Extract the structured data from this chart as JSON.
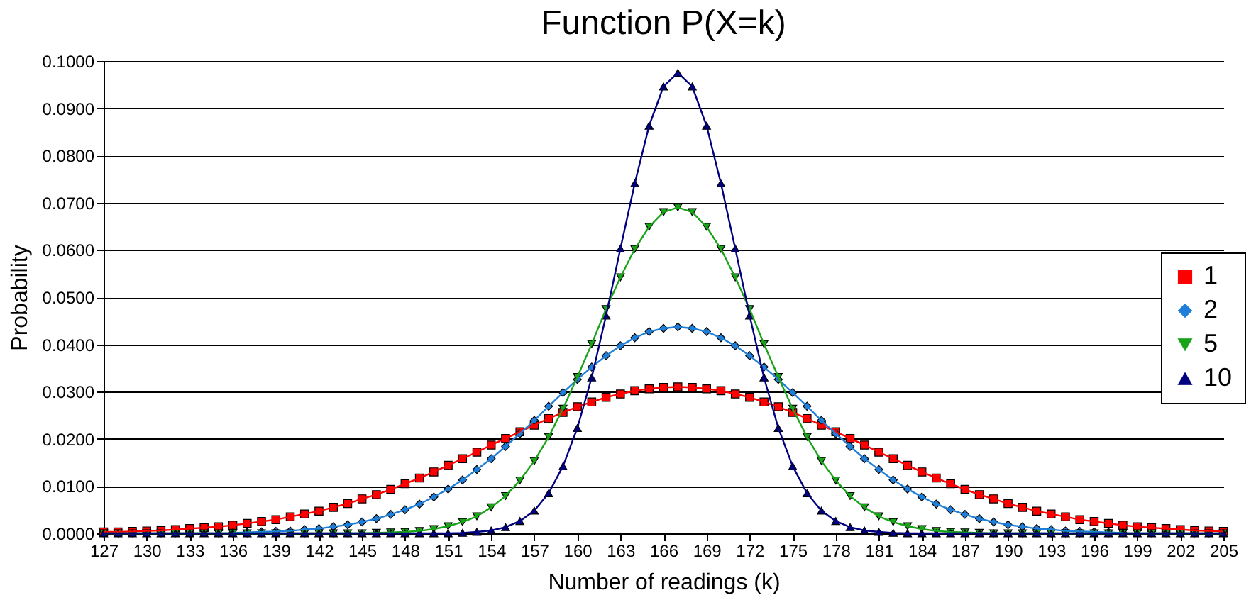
{
  "chart_data": {
    "type": "line",
    "title": "Function P(X=k)",
    "xlabel": "Number of readings (k)",
    "ylabel": "Probability",
    "x": [
      127,
      128,
      129,
      130,
      131,
      132,
      133,
      134,
      135,
      136,
      137,
      138,
      139,
      140,
      141,
      142,
      143,
      144,
      145,
      146,
      147,
      148,
      149,
      150,
      151,
      152,
      153,
      154,
      155,
      156,
      157,
      158,
      159,
      160,
      161,
      162,
      163,
      164,
      165,
      166,
      167,
      168,
      169,
      170,
      171,
      172,
      173,
      174,
      175,
      176,
      177,
      178,
      179,
      180,
      181,
      182,
      183,
      184,
      185,
      186,
      187,
      188,
      189,
      190,
      191,
      192,
      193,
      194,
      195,
      196,
      197,
      198,
      199,
      200,
      201,
      202,
      203,
      204,
      205
    ],
    "series": [
      {
        "name": "1",
        "color": "#ff0000",
        "marker": "square",
        "values": [
          0.0003,
          0.0003,
          0.0004,
          0.0005,
          0.0006,
          0.0008,
          0.001,
          0.0012,
          0.0014,
          0.0017,
          0.0021,
          0.0025,
          0.0029,
          0.0035,
          0.0041,
          0.0047,
          0.0055,
          0.0063,
          0.0073,
          0.0082,
          0.0093,
          0.0105,
          0.0117,
          0.013,
          0.0144,
          0.0158,
          0.0172,
          0.0187,
          0.0201,
          0.0215,
          0.0229,
          0.0243,
          0.0256,
          0.0268,
          0.0278,
          0.0288,
          0.0295,
          0.0302,
          0.0306,
          0.0309,
          0.031,
          0.0309,
          0.0306,
          0.0302,
          0.0295,
          0.0288,
          0.0278,
          0.0268,
          0.0256,
          0.0243,
          0.0229,
          0.0215,
          0.0201,
          0.0187,
          0.0172,
          0.0158,
          0.0144,
          0.013,
          0.0117,
          0.0105,
          0.0093,
          0.0082,
          0.0073,
          0.0063,
          0.0055,
          0.0047,
          0.0041,
          0.0035,
          0.0029,
          0.0025,
          0.0021,
          0.0017,
          0.0014,
          0.0012,
          0.001,
          0.0008,
          0.0006,
          0.0005,
          0.0004
        ]
      },
      {
        "name": "2",
        "color": "#1f7fd8",
        "marker": "diamond",
        "values": [
          null,
          null,
          null,
          null,
          null,
          null,
          null,
          null,
          null,
          0.0001,
          0.0002,
          0.0003,
          0.0004,
          0.0005,
          0.0008,
          0.001,
          0.0014,
          0.0018,
          0.0024,
          0.0031,
          0.004,
          0.005,
          0.0062,
          0.0077,
          0.0094,
          0.0113,
          0.0135,
          0.0158,
          0.0184,
          0.0211,
          0.0239,
          0.0269,
          0.0298,
          0.0326,
          0.0352,
          0.0376,
          0.0397,
          0.0414,
          0.0427,
          0.0434,
          0.0437,
          0.0434,
          0.0427,
          0.0414,
          0.0397,
          0.0376,
          0.0352,
          0.0326,
          0.0298,
          0.0269,
          0.0239,
          0.0211,
          0.0184,
          0.0158,
          0.0135,
          0.0113,
          0.0094,
          0.0077,
          0.0062,
          0.005,
          0.004,
          0.0031,
          0.0024,
          0.0018,
          0.0014,
          0.001,
          0.0008,
          0.0005,
          0.0004,
          0.0003,
          0.0002,
          0.0001,
          null,
          null,
          null,
          null,
          null,
          null,
          null
        ]
      },
      {
        "name": "5",
        "color": "#19a319",
        "marker": "triangle-down",
        "values": [
          0,
          0,
          0,
          0,
          0,
          0,
          0,
          0,
          0,
          0,
          0,
          0,
          0,
          0,
          0,
          0,
          0,
          0,
          0,
          0.0001,
          0.0002,
          0.0003,
          0.0005,
          0.0009,
          0.0015,
          0.0024,
          0.0036,
          0.0055,
          0.0079,
          0.0112,
          0.0153,
          0.0204,
          0.0264,
          0.0331,
          0.0401,
          0.0475,
          0.0542,
          0.0602,
          0.0649,
          0.068,
          0.069,
          0.068,
          0.0649,
          0.0602,
          0.0542,
          0.0475,
          0.0401,
          0.0331,
          0.0264,
          0.0204,
          0.0153,
          0.0112,
          0.0079,
          0.0055,
          0.0036,
          0.0024,
          0.0015,
          0.0009,
          0.0005,
          0.0003,
          0.0002,
          0.0001,
          0,
          0,
          0,
          0,
          0,
          0,
          0,
          0,
          0,
          0,
          0,
          0,
          0,
          0,
          0,
          0,
          0
        ]
      },
      {
        "name": "10",
        "color": "#000080",
        "marker": "triangle",
        "values": [
          0,
          0,
          0,
          0,
          0,
          0,
          0,
          0,
          0,
          0,
          0,
          0,
          0,
          0,
          0,
          0,
          0,
          0,
          0,
          0,
          0,
          0,
          0,
          0,
          0,
          0.0001,
          0.0003,
          0.0006,
          0.0013,
          0.0026,
          0.0048,
          0.0085,
          0.0142,
          0.0223,
          0.033,
          0.0461,
          0.0603,
          0.0741,
          0.0863,
          0.0946,
          0.0975,
          0.0946,
          0.0863,
          0.0741,
          0.0603,
          0.0461,
          0.033,
          0.0223,
          0.0142,
          0.0085,
          0.0048,
          0.0026,
          0.0013,
          0.0006,
          0.0003,
          0.0001,
          0,
          0,
          0,
          0,
          0,
          0,
          0,
          0,
          0,
          0,
          0,
          0,
          0,
          0,
          0,
          0,
          0,
          0,
          0,
          0,
          0,
          0,
          0
        ]
      }
    ],
    "xlim": [
      127,
      205
    ],
    "xticks": [
      127,
      130,
      133,
      136,
      139,
      142,
      145,
      148,
      151,
      154,
      157,
      160,
      163,
      166,
      169,
      172,
      175,
      178,
      181,
      184,
      187,
      190,
      193,
      196,
      199,
      202,
      205
    ],
    "ylim": [
      0,
      0.1
    ],
    "yticks": [
      {
        "value": 0,
        "label": "0.0000"
      },
      {
        "value": 0.01,
        "label": "0.0100"
      },
      {
        "value": 0.02,
        "label": "0.0200"
      },
      {
        "value": 0.03,
        "label": "0.0300"
      },
      {
        "value": 0.04,
        "label": "0.0400"
      },
      {
        "value": 0.05,
        "label": "0.0500"
      },
      {
        "value": 0.06,
        "label": "0.0600"
      },
      {
        "value": 0.07,
        "label": "0.0700"
      },
      {
        "value": 0.08,
        "label": "0.0800"
      },
      {
        "value": 0.09,
        "label": "0.0900"
      },
      {
        "value": 0.1,
        "label": "0.1000"
      }
    ],
    "grid": "y",
    "legend": "right",
    "line_style": "solid"
  }
}
